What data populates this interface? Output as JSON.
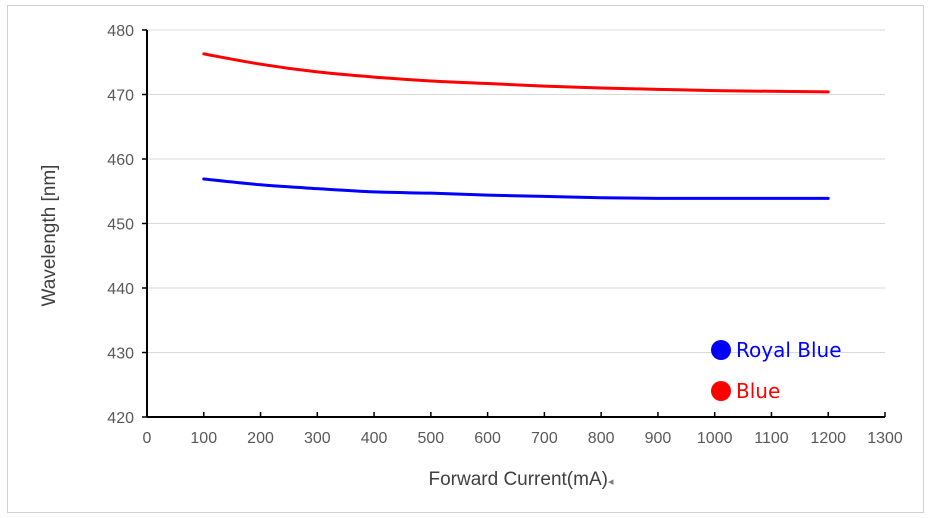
{
  "chart_data": {
    "type": "line",
    "title": "",
    "xlabel": "Forward Current(mA)",
    "xlabel_suffix": "◂",
    "ylabel": "Wavelength [nm]",
    "xlim": [
      0,
      1300
    ],
    "ylim": [
      420,
      480
    ],
    "xticks": [
      0,
      100,
      200,
      300,
      400,
      500,
      600,
      700,
      800,
      900,
      1000,
      1100,
      1200,
      1300
    ],
    "yticks": [
      420,
      430,
      440,
      450,
      460,
      470,
      480
    ],
    "grid": "horizontal",
    "legend_position": "bottom-right",
    "series": [
      {
        "name": "Royal Blue",
        "color": "#0000ff",
        "x": [
          100,
          200,
          300,
          400,
          500,
          600,
          700,
          800,
          900,
          1000,
          1100,
          1200
        ],
        "y": [
          456.9,
          456.0,
          455.4,
          454.9,
          454.7,
          454.4,
          454.2,
          454.0,
          453.9,
          453.9,
          453.9,
          453.9
        ]
      },
      {
        "name": "Blue",
        "color": "#ff0000",
        "x": [
          100,
          200,
          300,
          400,
          500,
          600,
          700,
          800,
          900,
          1000,
          1100,
          1200
        ],
        "y": [
          476.3,
          474.7,
          473.5,
          472.7,
          472.1,
          471.7,
          471.3,
          471.0,
          470.8,
          470.6,
          470.5,
          470.4
        ]
      }
    ]
  }
}
